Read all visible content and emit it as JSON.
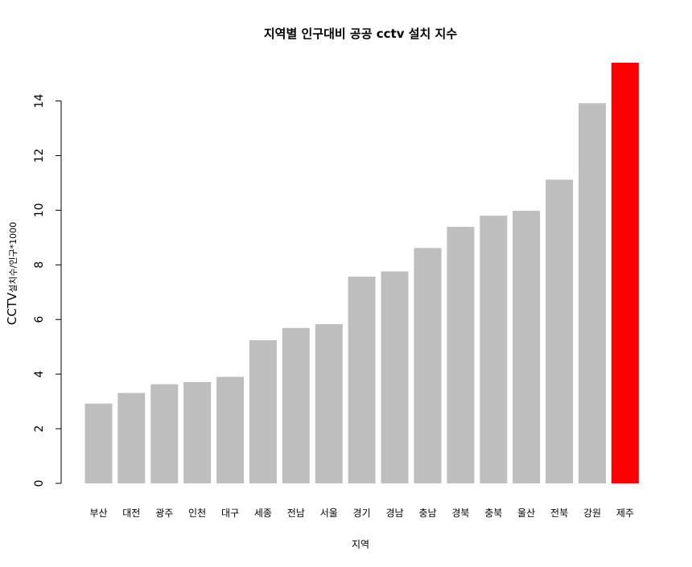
{
  "chart_data": {
    "type": "bar",
    "title": "지역별 인구대비 공공 cctv 설치 지수",
    "xlabel": "지역",
    "ylabel": "CCTV설치수/인구*1000",
    "categories": [
      "부산",
      "대전",
      "광주",
      "인천",
      "대구",
      "세종",
      "전남",
      "서울",
      "경기",
      "경남",
      "충남",
      "경북",
      "충북",
      "울산",
      "전북",
      "강원",
      "제주"
    ],
    "values": [
      2.92,
      3.31,
      3.63,
      3.71,
      3.9,
      5.24,
      5.69,
      5.83,
      7.57,
      7.76,
      8.62,
      9.39,
      9.8,
      9.98,
      11.12,
      13.92,
      15.4
    ],
    "ylim": [
      0,
      15.4
    ],
    "yticks": [
      0,
      2,
      4,
      6,
      8,
      10,
      12,
      14
    ],
    "grid": false,
    "colors": {
      "default": "#bebebe",
      "highlight": "#ff0000"
    },
    "highlight_category": "제주"
  }
}
